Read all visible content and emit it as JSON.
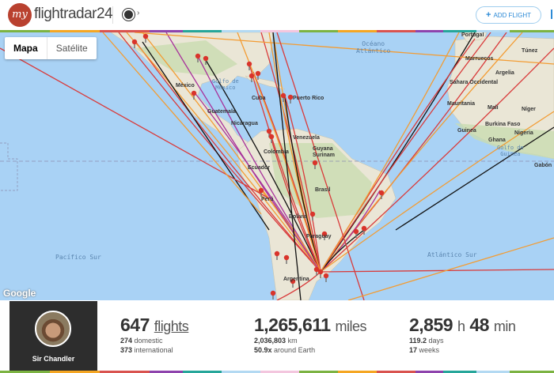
{
  "header": {
    "logo_mark": "my",
    "logo_text": "flightradar24",
    "add_flight_icon": "+",
    "add_flight_label": "ADD FLIGHT",
    "radar_icon": "radar-icon"
  },
  "map": {
    "type_buttons": [
      {
        "label": "Mapa",
        "active": true
      },
      {
        "label": "Satélite",
        "active": false
      }
    ],
    "oceans": {
      "atlantic": "Océano\nAtlántico",
      "pacific_south": "Pacífico Sur",
      "atlantic_south": "Atlántico Sur",
      "gulf_guinea": "Golfo de\nGuinea",
      "gulf_mexico": "Golfo de\nMéxico"
    },
    "countries": [
      "México",
      "Guatemala",
      "Nicaragua",
      "Cuba",
      "Puerto Rico",
      "Venezuela",
      "Guyana",
      "Surinam",
      "Colombia",
      "Ecuador",
      "Perú",
      "Brasil",
      "Bolivia",
      "Paraguay",
      "Argentina",
      "Portugal",
      "Marruecos",
      "Túnez",
      "Argelia",
      "Sahara Occidental",
      "Mauritania",
      "Malí",
      "Níger",
      "Burkina Faso",
      "Guinea",
      "Ghana",
      "Nigeria",
      "Gabón"
    ],
    "attribution": "Google",
    "colors": {
      "water": "#a9d2f5",
      "land": "#eae6d6",
      "forest": "#c9dcb0",
      "route_red": "#d93b3b",
      "route_orange": "#f39c33",
      "route_purple": "#a8329b",
      "route_black": "#111111",
      "marker": "#d9342b"
    }
  },
  "profile": {
    "name": "Sir Chandler"
  },
  "stats": {
    "flights": {
      "value": "647",
      "unit": "flights",
      "domestic_value": "274",
      "domestic_label": "domestic",
      "international_value": "373",
      "international_label": "international"
    },
    "distance": {
      "value": "1,265,611",
      "unit": "miles",
      "km_value": "2,036,803",
      "km_label": "km",
      "earth_value": "50.9x",
      "earth_label": "around Earth"
    },
    "time": {
      "hours": "2,859",
      "h_unit": "h",
      "minutes": "48",
      "min_unit": "min",
      "days_value": "119.2",
      "days_label": "days",
      "weeks_value": "17",
      "weeks_label": "weeks"
    }
  }
}
